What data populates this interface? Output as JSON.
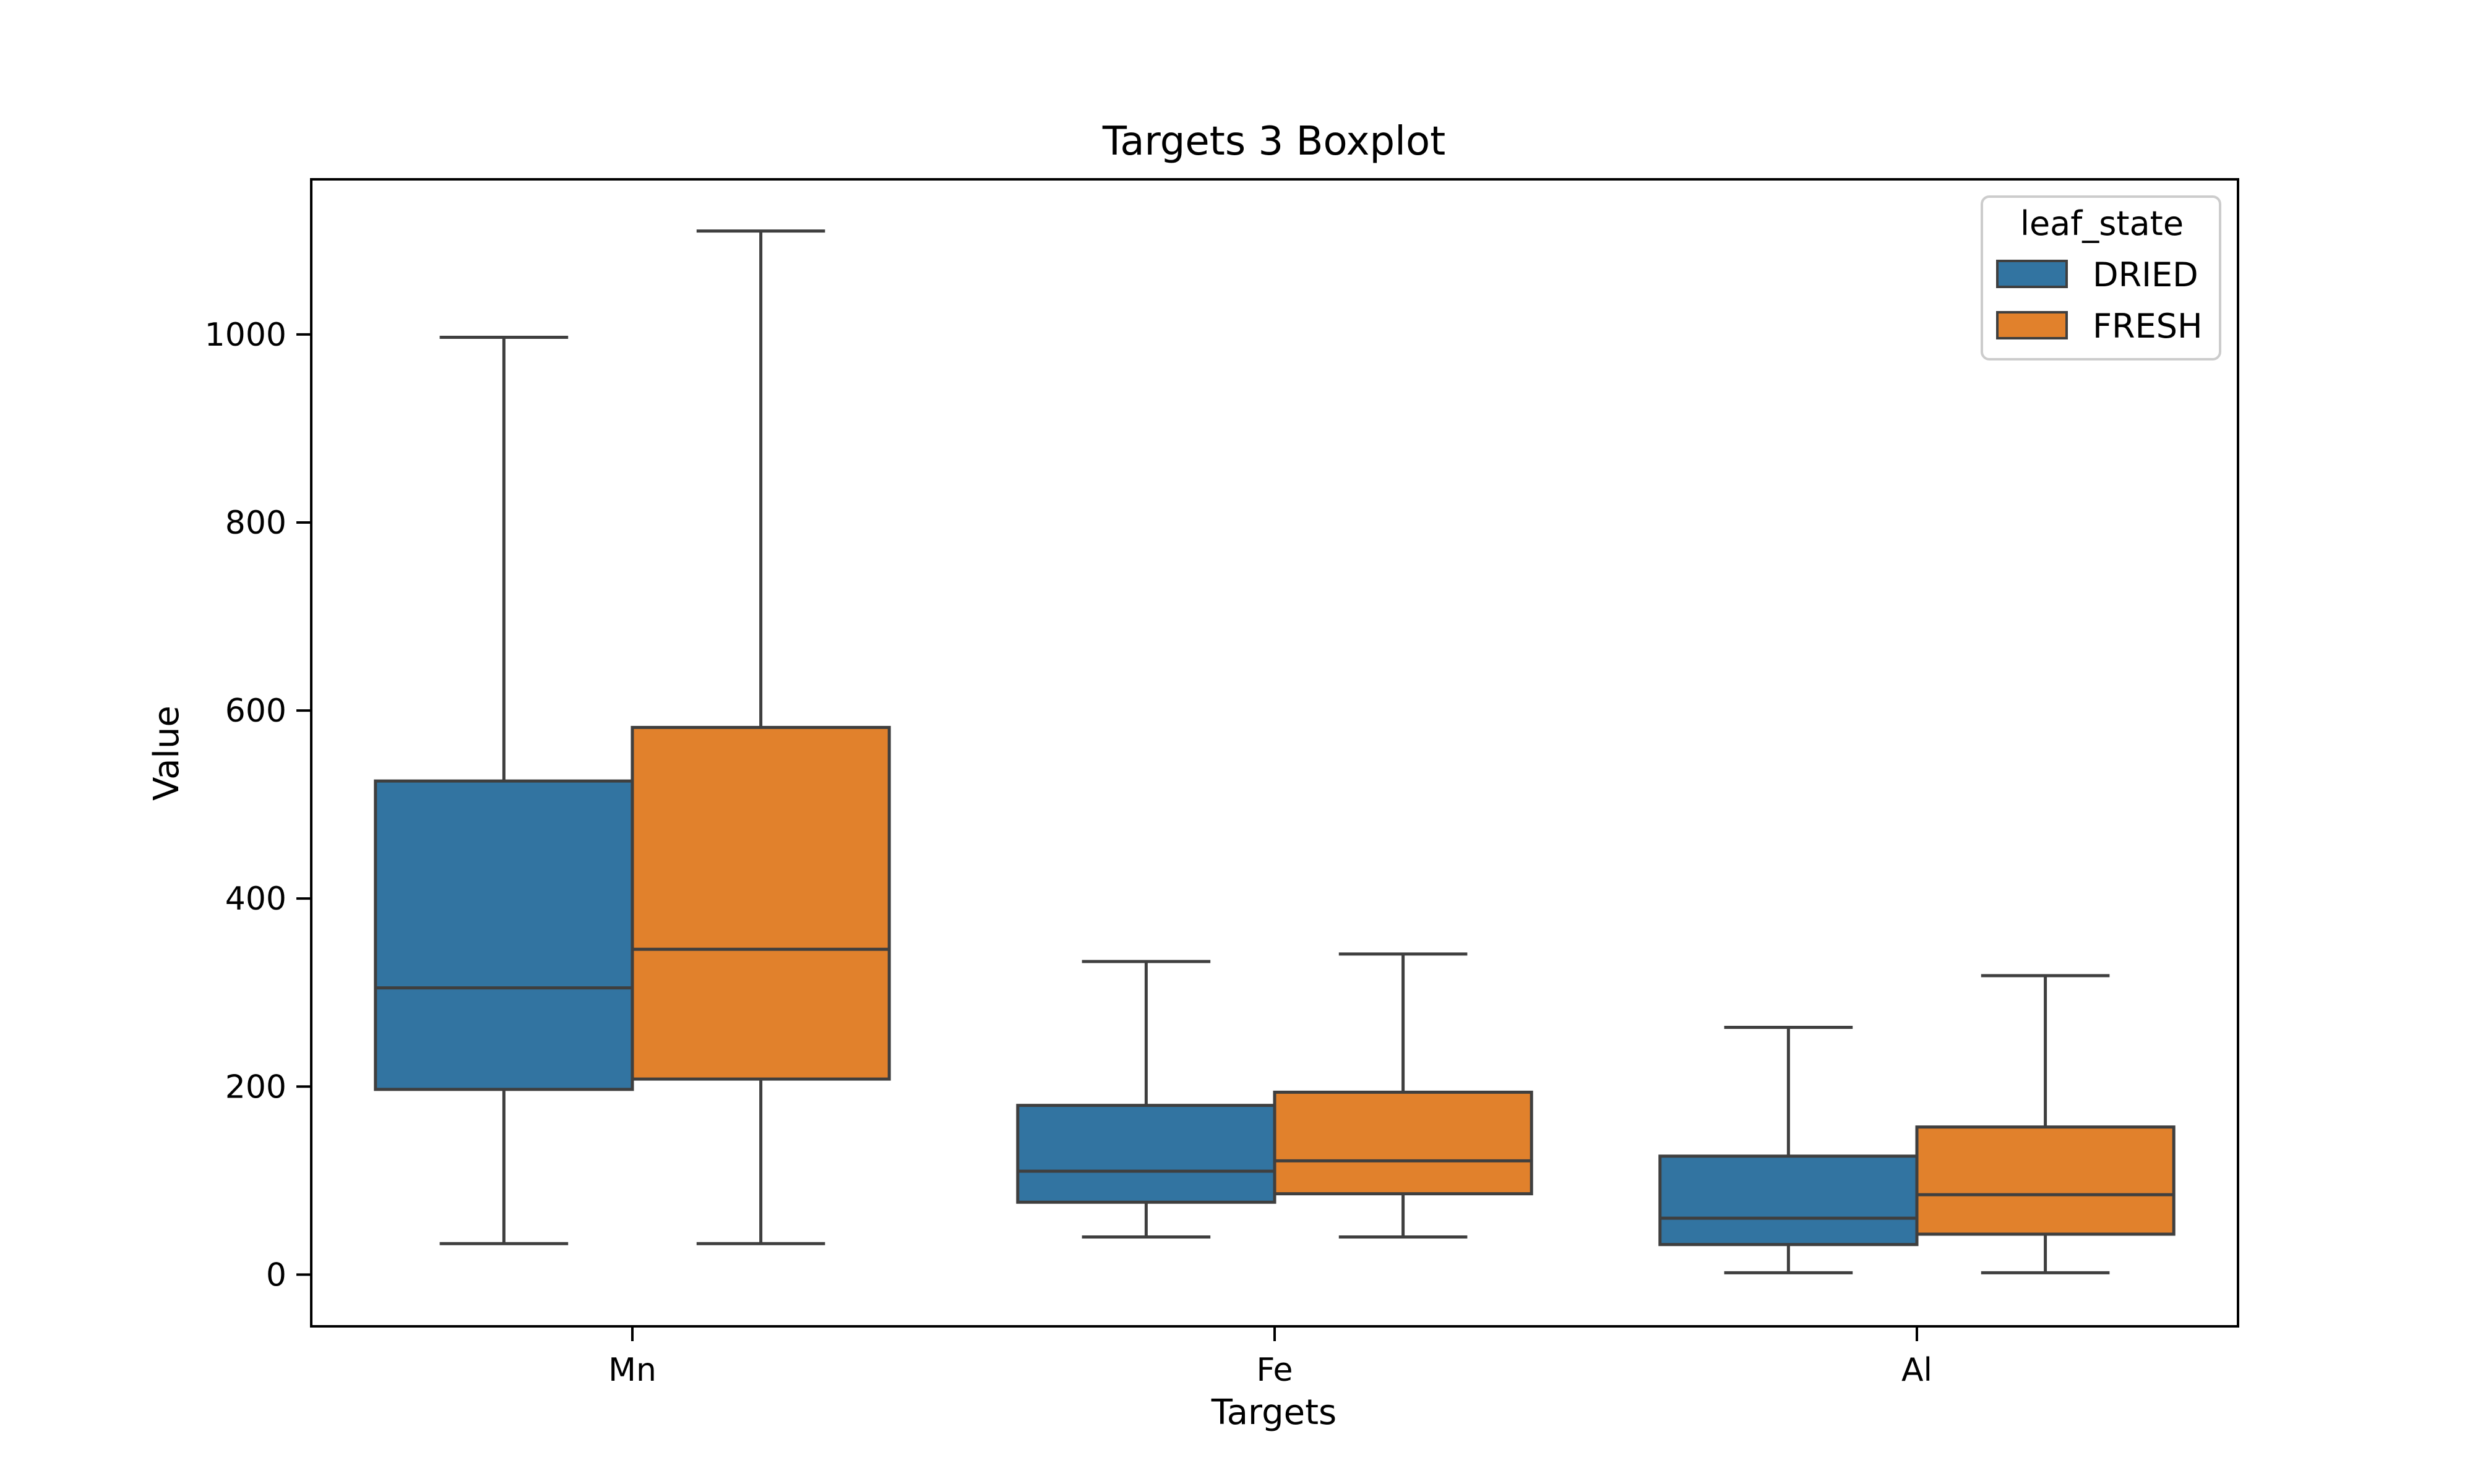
{
  "chart_data": {
    "type": "boxplot",
    "title": "Targets 3 Boxplot",
    "xlabel": "Targets",
    "ylabel": "Value",
    "categories": [
      "Mn",
      "Fe",
      "Al"
    ],
    "ylim": [
      -55,
      1165
    ],
    "yticks": [
      0,
      200,
      400,
      600,
      800,
      1000
    ],
    "ytick_labels": [
      "0",
      "200",
      "400",
      "600",
      "800",
      "1000"
    ],
    "grid": false,
    "legend": {
      "title": "leaf_state",
      "placement": "top-right",
      "entries": [
        "DRIED",
        "FRESH"
      ]
    },
    "colors": {
      "DRIED": "#3274a1",
      "FRESH": "#e1812c",
      "edge": "#3f3f3f"
    },
    "series": [
      {
        "name": "DRIED",
        "boxes": [
          {
            "category": "Mn",
            "whisker_low": 33,
            "q1": 197,
            "median": 305,
            "q3": 525,
            "whisker_high": 997
          },
          {
            "category": "Fe",
            "whisker_low": 40,
            "q1": 77,
            "median": 110,
            "q3": 180,
            "whisker_high": 333
          },
          {
            "category": "Al",
            "whisker_low": 2,
            "q1": 32,
            "median": 60,
            "q3": 126,
            "whisker_high": 263
          }
        ]
      },
      {
        "name": "FRESH",
        "boxes": [
          {
            "category": "Mn",
            "whisker_low": 33,
            "q1": 208,
            "median": 346,
            "q3": 582,
            "whisker_high": 1110
          },
          {
            "category": "Fe",
            "whisker_low": 40,
            "q1": 86,
            "median": 121,
            "q3": 194,
            "whisker_high": 341
          },
          {
            "category": "Al",
            "whisker_low": 2,
            "q1": 43,
            "median": 85,
            "q3": 157,
            "whisker_high": 318
          }
        ]
      }
    ]
  }
}
